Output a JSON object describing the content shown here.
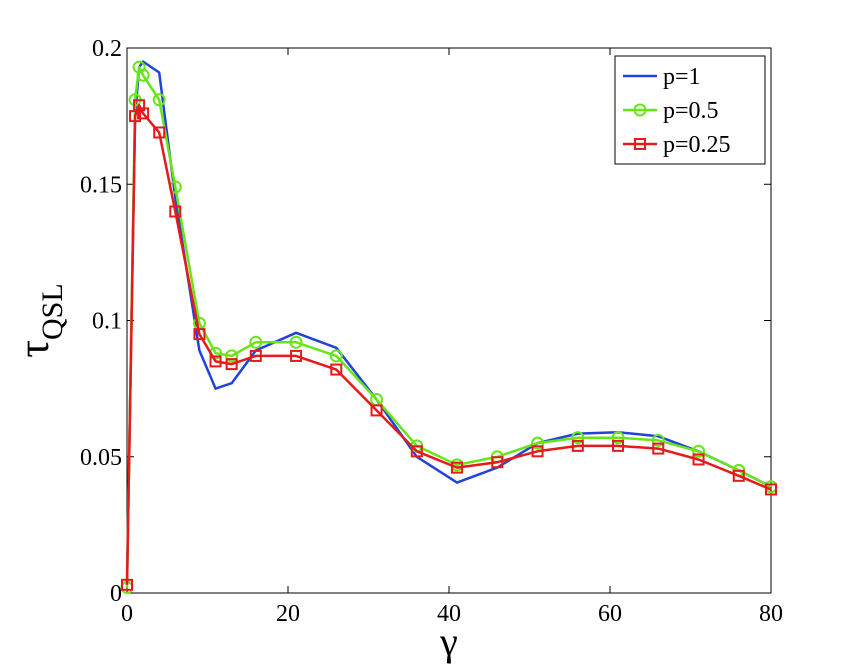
{
  "chart_data": {
    "type": "line",
    "title": "",
    "xlabel": "γ",
    "ylabel": "τ",
    "ylabel_subscript": "QSL",
    "xlim": [
      0,
      80
    ],
    "ylim": [
      0,
      0.2
    ],
    "xticks": [
      0,
      20,
      40,
      60,
      80
    ],
    "xtick_labels": [
      "0",
      "20",
      "40",
      "60",
      "80"
    ],
    "yticks": [
      0,
      0.05,
      0.1,
      0.15,
      0.2
    ],
    "ytick_labels": [
      "0",
      "0.05",
      "0.1",
      "0.15",
      "0.2"
    ],
    "grid": false,
    "legend_position": "top-right",
    "series": [
      {
        "name": "p=1",
        "color": "#2343d8",
        "marker": "none",
        "x": [
          0,
          0.5,
          1,
          1.5,
          2,
          4,
          6,
          9,
          11,
          13,
          16,
          21,
          26,
          31,
          36,
          41,
          46,
          51,
          56,
          61,
          66,
          71,
          76,
          80
        ],
        "y": [
          0.003,
          0.09,
          0.175,
          0.193,
          0.195,
          0.191,
          0.145,
          0.089,
          0.075,
          0.077,
          0.089,
          0.0955,
          0.09,
          0.071,
          0.05,
          0.0405,
          0.046,
          0.055,
          0.0585,
          0.059,
          0.0575,
          0.052,
          0.045,
          0.039
        ]
      },
      {
        "name": "p=0.5",
        "color": "#66e619",
        "marker": "circle",
        "x": [
          0,
          1,
          1.5,
          2,
          4,
          6,
          9,
          11,
          13,
          16,
          21,
          26,
          31,
          36,
          41,
          46,
          51,
          56,
          61,
          66,
          71,
          76,
          80
        ],
        "y": [
          0.002,
          0.181,
          0.193,
          0.19,
          0.181,
          0.149,
          0.099,
          0.088,
          0.087,
          0.092,
          0.092,
          0.087,
          0.071,
          0.054,
          0.047,
          0.05,
          0.055,
          0.057,
          0.057,
          0.056,
          0.052,
          0.045,
          0.039
        ]
      },
      {
        "name": "p=0.25",
        "color": "#e61a1a",
        "marker": "square",
        "x": [
          0,
          1,
          1.5,
          2,
          4,
          6,
          9,
          11,
          13,
          16,
          21,
          26,
          31,
          36,
          41,
          46,
          51,
          56,
          61,
          66,
          71,
          76,
          80
        ],
        "y": [
          0.003,
          0.175,
          0.179,
          0.176,
          0.169,
          0.14,
          0.095,
          0.085,
          0.084,
          0.087,
          0.087,
          0.082,
          0.067,
          0.052,
          0.046,
          0.048,
          0.052,
          0.054,
          0.054,
          0.053,
          0.049,
          0.043,
          0.038
        ]
      }
    ]
  }
}
